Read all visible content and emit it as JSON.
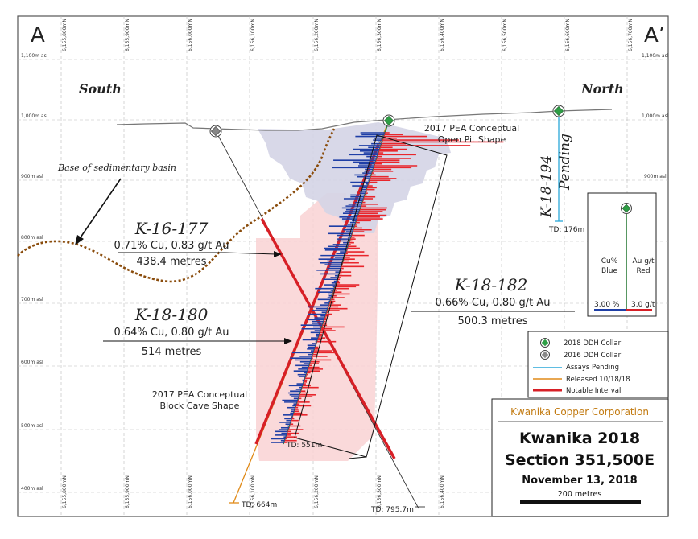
{
  "section_labels": {
    "left": "A",
    "right": "A’"
  },
  "directions": {
    "south": "South",
    "north": "North"
  },
  "elevations": [
    "1,100m asl",
    "1,000m asl",
    "900m asl",
    "800m asl",
    "700m asl",
    "600m asl",
    "500m asl",
    "400m asl"
  ],
  "northings": [
    "6,155,800mN",
    "6,155,900mN",
    "6,156,000mN",
    "6,156,100mN",
    "6,156,200mN",
    "6,156,300mN",
    "6,156,400mN",
    "6,156,500mN",
    "6,156,600mN",
    "6,156,700mN"
  ],
  "basin_label": "Base of sedimentary basin",
  "pit_label": [
    "2017 PEA Conceptual",
    "Open Pit Shape"
  ],
  "cave_label": [
    "2017 PEA Conceptual",
    "Block Cave Shape"
  ],
  "holes": {
    "k16177": {
      "name": "K-16-177",
      "grade": "0.71% Cu, 0.83 g/t Au",
      "length": "438.4 metres"
    },
    "k18180": {
      "name": "K-18-180",
      "grade": "0.64% Cu, 0.80 g/t Au",
      "length": "514 metres"
    },
    "k18182": {
      "name": "K-18-182",
      "grade": "0.66% Cu, 0.80 g/t Au",
      "length": "500.3 metres"
    },
    "k18194": {
      "name": "K-18-194",
      "status": "Pending",
      "td": "TD: 176m"
    }
  },
  "td_labels": {
    "k18182": "TD: 551m",
    "k18180": "TD: 664m",
    "k16177": "TD: 795.7m"
  },
  "inset": {
    "cu_label": [
      "Cu%",
      "Blue"
    ],
    "au_label": [
      "Au g/t",
      "Red"
    ],
    "cu_scale": "3.00 %",
    "au_scale": "3.0 g/t"
  },
  "legend": {
    "items": [
      {
        "label": "2018 DDH Collar",
        "color": "#2e9e45"
      },
      {
        "label": "2016 DDH Collar",
        "color": "#777777"
      },
      {
        "label": "Assays Pending",
        "color": "#2aa7d8"
      },
      {
        "label": "Released 10/18/18",
        "color": "#e08a18"
      },
      {
        "label": "Notable Interval",
        "color": "#d71f26"
      }
    ]
  },
  "title_block": {
    "company": "Kwanika Copper Corporation",
    "project": "Kwanika 2018",
    "section": "Section 351,500E",
    "date": "November 13, 2018",
    "scale": "200 metres"
  }
}
